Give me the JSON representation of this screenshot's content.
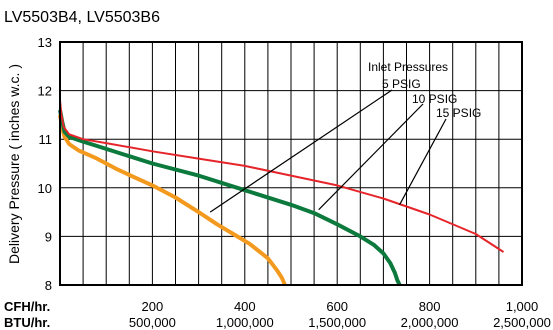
{
  "chart_data": {
    "type": "line",
    "title": "LV5503B4, LV5503B6",
    "ylabel": "Delivery Pressure ( inches w.c. )",
    "xlabel_cfh": "CFH/hr.",
    "xlabel_btu": "BTU/hr.",
    "xlim": [
      0,
      1000
    ],
    "ylim": [
      8,
      13
    ],
    "yticks": [
      "8",
      "9",
      "10",
      "11",
      "12",
      "13"
    ],
    "xticks_cfh": [
      "200",
      "400",
      "600",
      "800",
      "1,000"
    ],
    "xticks_btu": [
      "500,000",
      "1,000,000",
      "1,500,000",
      "2,000,000",
      "2,500,000"
    ],
    "grid": true,
    "annotation_title": "Inlet Pressures",
    "series": [
      {
        "name": "5 PSIG",
        "color": "#f39a1e",
        "x": [
          0,
          5,
          10,
          20,
          40,
          80,
          120,
          160,
          200,
          250,
          300,
          340,
          380,
          410,
          430,
          450,
          470,
          480,
          487
        ],
        "y": [
          11.5,
          11.22,
          11.05,
          10.9,
          10.77,
          10.6,
          10.4,
          10.22,
          10.05,
          9.8,
          9.5,
          9.25,
          9.02,
          8.85,
          8.7,
          8.55,
          8.3,
          8.15,
          8.0
        ]
      },
      {
        "name": "10 PSIG",
        "color": "#0c7a3c",
        "x": [
          0,
          5,
          10,
          20,
          50,
          100,
          150,
          200,
          300,
          400,
          500,
          550,
          600,
          650,
          680,
          700,
          715,
          725,
          730,
          735
        ],
        "y": [
          11.6,
          11.35,
          11.15,
          11.05,
          10.95,
          10.8,
          10.65,
          10.5,
          10.25,
          9.95,
          9.65,
          9.48,
          9.25,
          9.0,
          8.82,
          8.65,
          8.45,
          8.25,
          8.1,
          8.0
        ]
      },
      {
        "name": "15 PSIG",
        "color": "#e5252a",
        "x": [
          0,
          3,
          8,
          20,
          50,
          100,
          200,
          300,
          400,
          500,
          600,
          700,
          800,
          900,
          960
        ],
        "y": [
          11.8,
          11.5,
          11.25,
          11.1,
          11.0,
          10.92,
          10.75,
          10.6,
          10.45,
          10.25,
          10.05,
          9.78,
          9.45,
          9.05,
          8.68
        ]
      }
    ]
  }
}
